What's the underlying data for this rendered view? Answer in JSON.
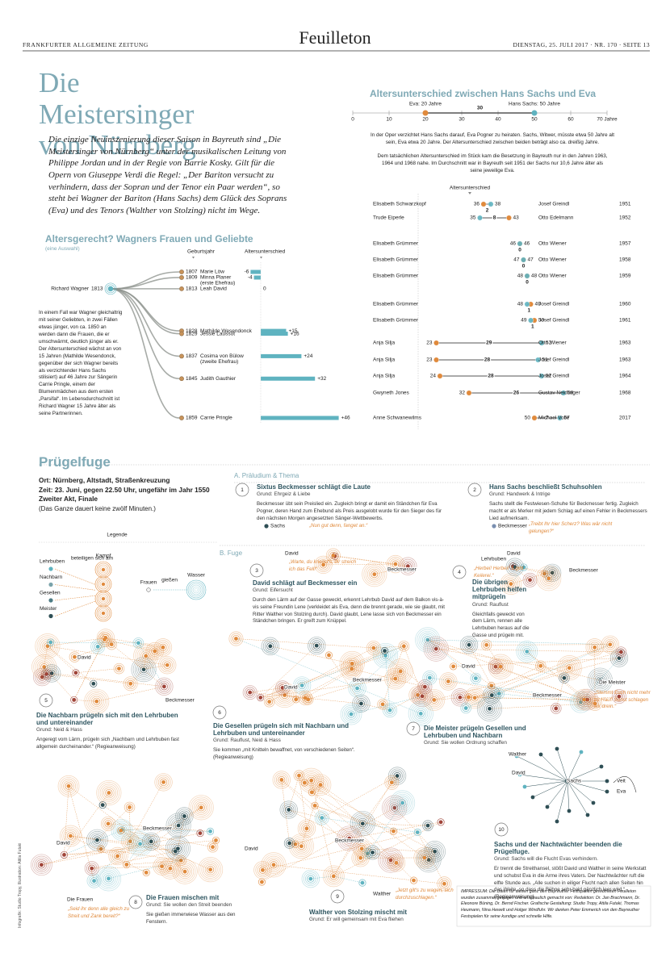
{
  "header": {
    "paper": "FRANKFURTER ALLGEMEINE ZEITUNG",
    "section": "Feuilleton",
    "date": "DIENSTAG, 25. JULI 2017 · NR. 170 · SEITE 13"
  },
  "title": "Die Meistersinger von Nürnberg",
  "intro": "Die einzige Neuinszenierung dieser Saison in Bayreuth sind „Die Meistersinger von Nürnberg“ unter der musikalischen Leitung von Philippe Jordan und in der Regie von Barrie Kosky. Gilt für die Opern von Giuseppe Verdi die Regel: „Der Bariton versucht zu verhindern, dass der Sopran und der Tenor ein Paar werden“, so steht bei Wagner der Bariton (Hans Sachs) dem Glück des Soprans (Eva) und des Tenors (Walther von Stolzing) nicht im Wege.",
  "wagner": {
    "title": "Altersgerecht? Wagners Frauen und Geliebte",
    "subtitle": "(eine Auswahl)",
    "birth_header": "Geburtsjahr",
    "diff_header": "Altersunterschied",
    "name": "Richard Wagner",
    "birth_year": 1813,
    "women": [
      {
        "name": "Marie Löw",
        "birth_year": 1807,
        "diff": -6
      },
      {
        "name": "Minna Planer",
        "note": "(erste Ehefrau)",
        "birth_year": 1809,
        "diff": -4
      },
      {
        "name": "Leah David",
        "birth_year": 1813,
        "diff": 0
      },
      {
        "name": "Mathilde Wesendonck",
        "birth_year": 1828,
        "diff": 15,
        "diff_label": "+15"
      },
      {
        "name": "Jessie Laussot",
        "birth_year": 1829,
        "diff": 16,
        "diff_label": "+16"
      },
      {
        "name": "Cosima von Bülow",
        "note": "(zweite Ehefrau)",
        "birth_year": 1837,
        "diff": 24,
        "diff_label": "+24"
      },
      {
        "name": "Judith Gauthier",
        "birth_year": 1845,
        "diff": 32,
        "diff_label": "+32"
      },
      {
        "name": "Carrie Pringle",
        "birth_year": 1859,
        "diff": 46,
        "diff_label": "+46"
      }
    ],
    "text": "In einem Fall war Wagner gleichaltrig mit seiner Geliebten, in zwei Fällen etwas jünger, von ca. 1850 an werden dann die Frauen, die er umschwärmt, deutlich jünger als er. Der Altersunterschied wächst an von 15 Jahren (Mathilde Wesendonck, gegenüber der sich Wagner bereits als verzichtender Hans Sachs stilisiert) auf 46 Jahre zur Sängerin Carrie Pringle, einem der Blumenmädchen aus dem ersten „Parsifal“. Im Lebensdurchschnitt ist Richard Wagner 15 Jahre älter als seine Partnerinnen."
  },
  "ages": {
    "title": "Altersunterschied zwischen Hans Sachs und Eva",
    "xlim": [
      0,
      70
    ],
    "xticks": [
      0,
      10,
      20,
      30,
      40,
      50,
      60,
      {
        "value": 70,
        "label": "70 Jahre"
      }
    ],
    "eva_label": "Eva: 20 Jahre",
    "eva_age": 20,
    "sachs_label": "Hans Sachs: 50 Jahre",
    "sachs_age": 50,
    "diff": 30,
    "paragraph1": "In der Oper verzichtet Hans Sachs darauf, Eva Pogner zu heiraten. Sachs, Witwer, müsste etwa 50 Jahre alt sein, Eva etwa 20 Jahre. Der Altersunterschied zwischen beiden beträgt also ca. dreißig Jahre.",
    "paragraph2": "Dem tatsächlichen Altersunterschied im Stück kam die Besetzung in Bayreuth nur in den Jahren 1963, 1964 und 1968 nahe. Im Durchschnitt war in Bayreuth seit 1951 der Sachs nur 10,6 Jahre älter als seine jeweilige Eva.",
    "diff_header": "Altersunterschied",
    "rows": [
      {
        "eva": "Elisabeth Schwarzkopf",
        "eva_age": 36,
        "sachs": "Josef Greindl",
        "sachs_age": 38,
        "diff": 2,
        "year": 1951
      },
      {
        "eva": "Trude Eiperle",
        "eva_age": 43,
        "sachs": "Otto Edelmann",
        "sachs_age": 35,
        "diff": 8,
        "year": 1952
      },
      {
        "eva": "Elisabeth Grümmer",
        "eva_age": 46,
        "sachs": "Otto Wiener",
        "sachs_age": 46,
        "diff": 0,
        "year": 1957
      },
      {
        "eva": "Elisabeth Grümmer",
        "eva_age": 47,
        "sachs": "Otto Wiener",
        "sachs_age": 47,
        "diff": 0,
        "year": 1958
      },
      {
        "eva": "Elisabeth Grümmer",
        "eva_age": 48,
        "sachs": "Otto Wiener",
        "sachs_age": 48,
        "diff": 0,
        "year": 1959
      },
      {
        "eva": "Elisabeth Grümmer",
        "eva_age": 49,
        "sachs": "Josef Greindl",
        "sachs_age": 48,
        "diff": 1,
        "year": 1960
      },
      {
        "eva": "Elisabeth Grümmer",
        "eva_age": 50,
        "sachs": "Josef Greindl",
        "sachs_age": 49,
        "diff": 1,
        "year": 1961
      },
      {
        "eva": "Anja Silja",
        "eva_age": 23,
        "sachs": "Otto Wiener",
        "sachs_age": 52,
        "diff": 29,
        "year": 1963
      },
      {
        "eva": "Anja Silja",
        "eva_age": 23,
        "sachs": "Josef Greindl",
        "sachs_age": 51,
        "diff": 28,
        "year": 1963
      },
      {
        "eva": "Anja Silja",
        "eva_age": 24,
        "sachs": "Josef Greindl",
        "sachs_age": 52,
        "diff": 28,
        "year": 1964
      },
      {
        "eva": "Gwyneth Jones",
        "eva_age": 32,
        "sachs": "Gustav Neidlinger",
        "sachs_age": 58,
        "diff": 26,
        "year": 1968
      },
      {
        "eva": "Anne Schwanewilms",
        "eva_age": 50,
        "sachs": "Michael Volle",
        "sachs_age": 57,
        "diff": 7,
        "year": 2017
      }
    ]
  },
  "pruegelfuge": {
    "title": "Prügelfuge",
    "lines": [
      "Ort: Nürnberg, Altstadt, Straßenkreuzung",
      "Zeit: 23. Juni, gegen 22.50 Uhr, ungefähr im Jahr 1550",
      "Zweiter Akt, Finale",
      "(Das Ganze dauert keine zwölf Minuten.)"
    ],
    "part_a": "A. Präludium & Thema",
    "part_b": "B. Fuge"
  },
  "legend": {
    "title": "Legende",
    "groups": [
      "Lehrbuben",
      "Nachbarn",
      "Gesellen",
      "Meister"
    ],
    "join": "beteiligen sich am",
    "fight": "Kampf",
    "women": "Frauen",
    "pour": "gießen",
    "water": "Wasser"
  },
  "panels": [
    {
      "number": 1,
      "title": "Sixtus Beckmesser schlägt die Laute",
      "reason": "Grund: Ehrgeiz & Liebe",
      "text": "Beckmesser übt sein Preislied ein. Zugleich bringt er damit ein Ständchen für Eva Pogner, deren Hand zum Ehebund als Preis ausgelobt wurde für den Sieger des für den nächsten Morgen angesetzten Sänger-Wettbewerbs.",
      "names": [
        "Sachs"
      ],
      "quote": "„Nun gut denn, fanget an.“"
    },
    {
      "number": 2,
      "title": "Hans Sachs beschließt Schuhsohlen",
      "reason": "Grund: Handwerk & Intrige",
      "text": "Sachs stellt die Festwiesen-Schuhe für Beckmesser fertig. Zugleich macht er als Merker mit jedem Schlag auf einen Fehler in Beckmessers Lied aufmerksam.",
      "names": [
        "Beckmesser"
      ],
      "quote": "„Treibt Ihr hier Scherz? Was wär nicht gelungen?“"
    },
    {
      "number": 3,
      "title": "David schlägt auf Beckmesser ein",
      "reason": "Grund: Eifersucht",
      "text": "Durch den Lärm auf der Gasse geweckt, erkennt Lehrbub David auf dem Balkon vis-à-vis seine Freundin Lene (verkleidet als Eva, denn die brennt gerade, wie sie glaubt, mit Ritter Walther von Stolzing durch). David glaubt, Lene lasse sich von Beckmesser ein Ständchen bringen. Er greift zum Knüppel.",
      "names": [
        "David",
        "Beckmesser"
      ],
      "quote": "„Warte, du kriegst's, dir streich ich das Fell!“"
    },
    {
      "number": 4,
      "title": "Die übrigen Lehrbuben helfen mitprügeln",
      "reason": "Grund: Rauflust",
      "text": "Gleichfalls geweckt von dem Lärm, rennen alle Lehrbuben heraus auf die Gasse und prügeln mit.",
      "names": [
        "David",
        "Lehrbuben",
        "Beckmesser"
      ],
      "quote": "„Herbei! Herbei! 's gibt Keilerei.“"
    },
    {
      "number": 5,
      "title": "Die Nachbarn prügeln sich mit den Lehrbuben und untereinander",
      "reason": "Grund: Neid & Hass",
      "text": "Angeregt vom Lärm, prügeln sich „Nachbarn und Lehrbuben fast allgemein durcheinander.“ (Regieanweisung)",
      "names": [
        "David",
        "Beckmesser"
      ]
    },
    {
      "number": 6,
      "title": "Die Gesellen prügeln sich mit Nachbarn und Lehrbuben und untereinander",
      "reason": "Grund: Rauflust, Neid & Hass",
      "text": "Sie kommen „mit Knitteln bewaffnet, von verschiedenen Seiten“. (Regieanweisung)",
      "names": [
        "David",
        "Beckmesser"
      ]
    },
    {
      "number": 7,
      "title": "Die Meister prügeln Gesellen und Lehrbuben und Nachbarn",
      "reason": "Grund: Sie wollen Ordnung schaffen",
      "names": [
        "David",
        "Beckmesser",
        "Die Meister"
      ],
      "quote": "„Stemmt Euch nicht mehr zu Hauf! Sonst schlagen wir drein.“"
    },
    {
      "number": 8,
      "title": "Die Frauen mischen mit",
      "reason": "Grund: Sie wollen den Streit beenden",
      "text": "Sie gießen immerwiese Wasser aus den Fenstern.",
      "names": [
        "David",
        "Beckmesser",
        "Die Frauen"
      ],
      "quote": "„Seid ihr denn alle gleich zu Streit und Zank bereit?“"
    },
    {
      "number": 9,
      "title": "Walther von Stolzing mischt mit",
      "reason": "Grund: Er will gemeinsam mit Eva fliehen",
      "names": [
        "Walther",
        "David",
        "Beckmesser"
      ],
      "quote": "„Jetzt gilt's zu wagen, sich durchzuschlagen.“"
    },
    {
      "number": 10,
      "title": "Sachs und der Nachtwächter beenden die Prügelfuge.",
      "reason": "Grund: Sachs will die Flucht Evas verhindern.",
      "text": "Er trennt die Streithansel, stößt David und Walther in seine Werkstatt und schubst Eva in die Arme ihres Vaters. Der Nachtwächter ruft die elfte Stunde aus. „Alle suchen in eiliger Flucht nach allen Seiten hin das Weite, so dass die Bühne sehr bald gänzlich leer wird.“ (Regieanweisung)",
      "names": [
        "Walther",
        "David",
        "Sachs",
        "Veit",
        "Eva"
      ]
    }
  ],
  "impressum": "IMPRESSUM: Die Daten für diesen ganz den Bayreuther Festspielen gewidmeten Feuilleton wurden zusammengetragen und anschaulich gemacht von: Redaktion: Dr. Jan Brachmann, Dr. Eleonore Büning, Dr. Bernd Fischer. Grafische Gestaltung: Studio Tropy, Attila Futaki, Thomas Heumann, Nina Hewelt und Holger Windfuhr. Wir danken Peter Emmerich von den Bayreuther Festspielen für seine kundige und schnelle Hilfe.",
  "credit": "Infografik: Studio Tropy, Illustration: Attila Futaki"
}
